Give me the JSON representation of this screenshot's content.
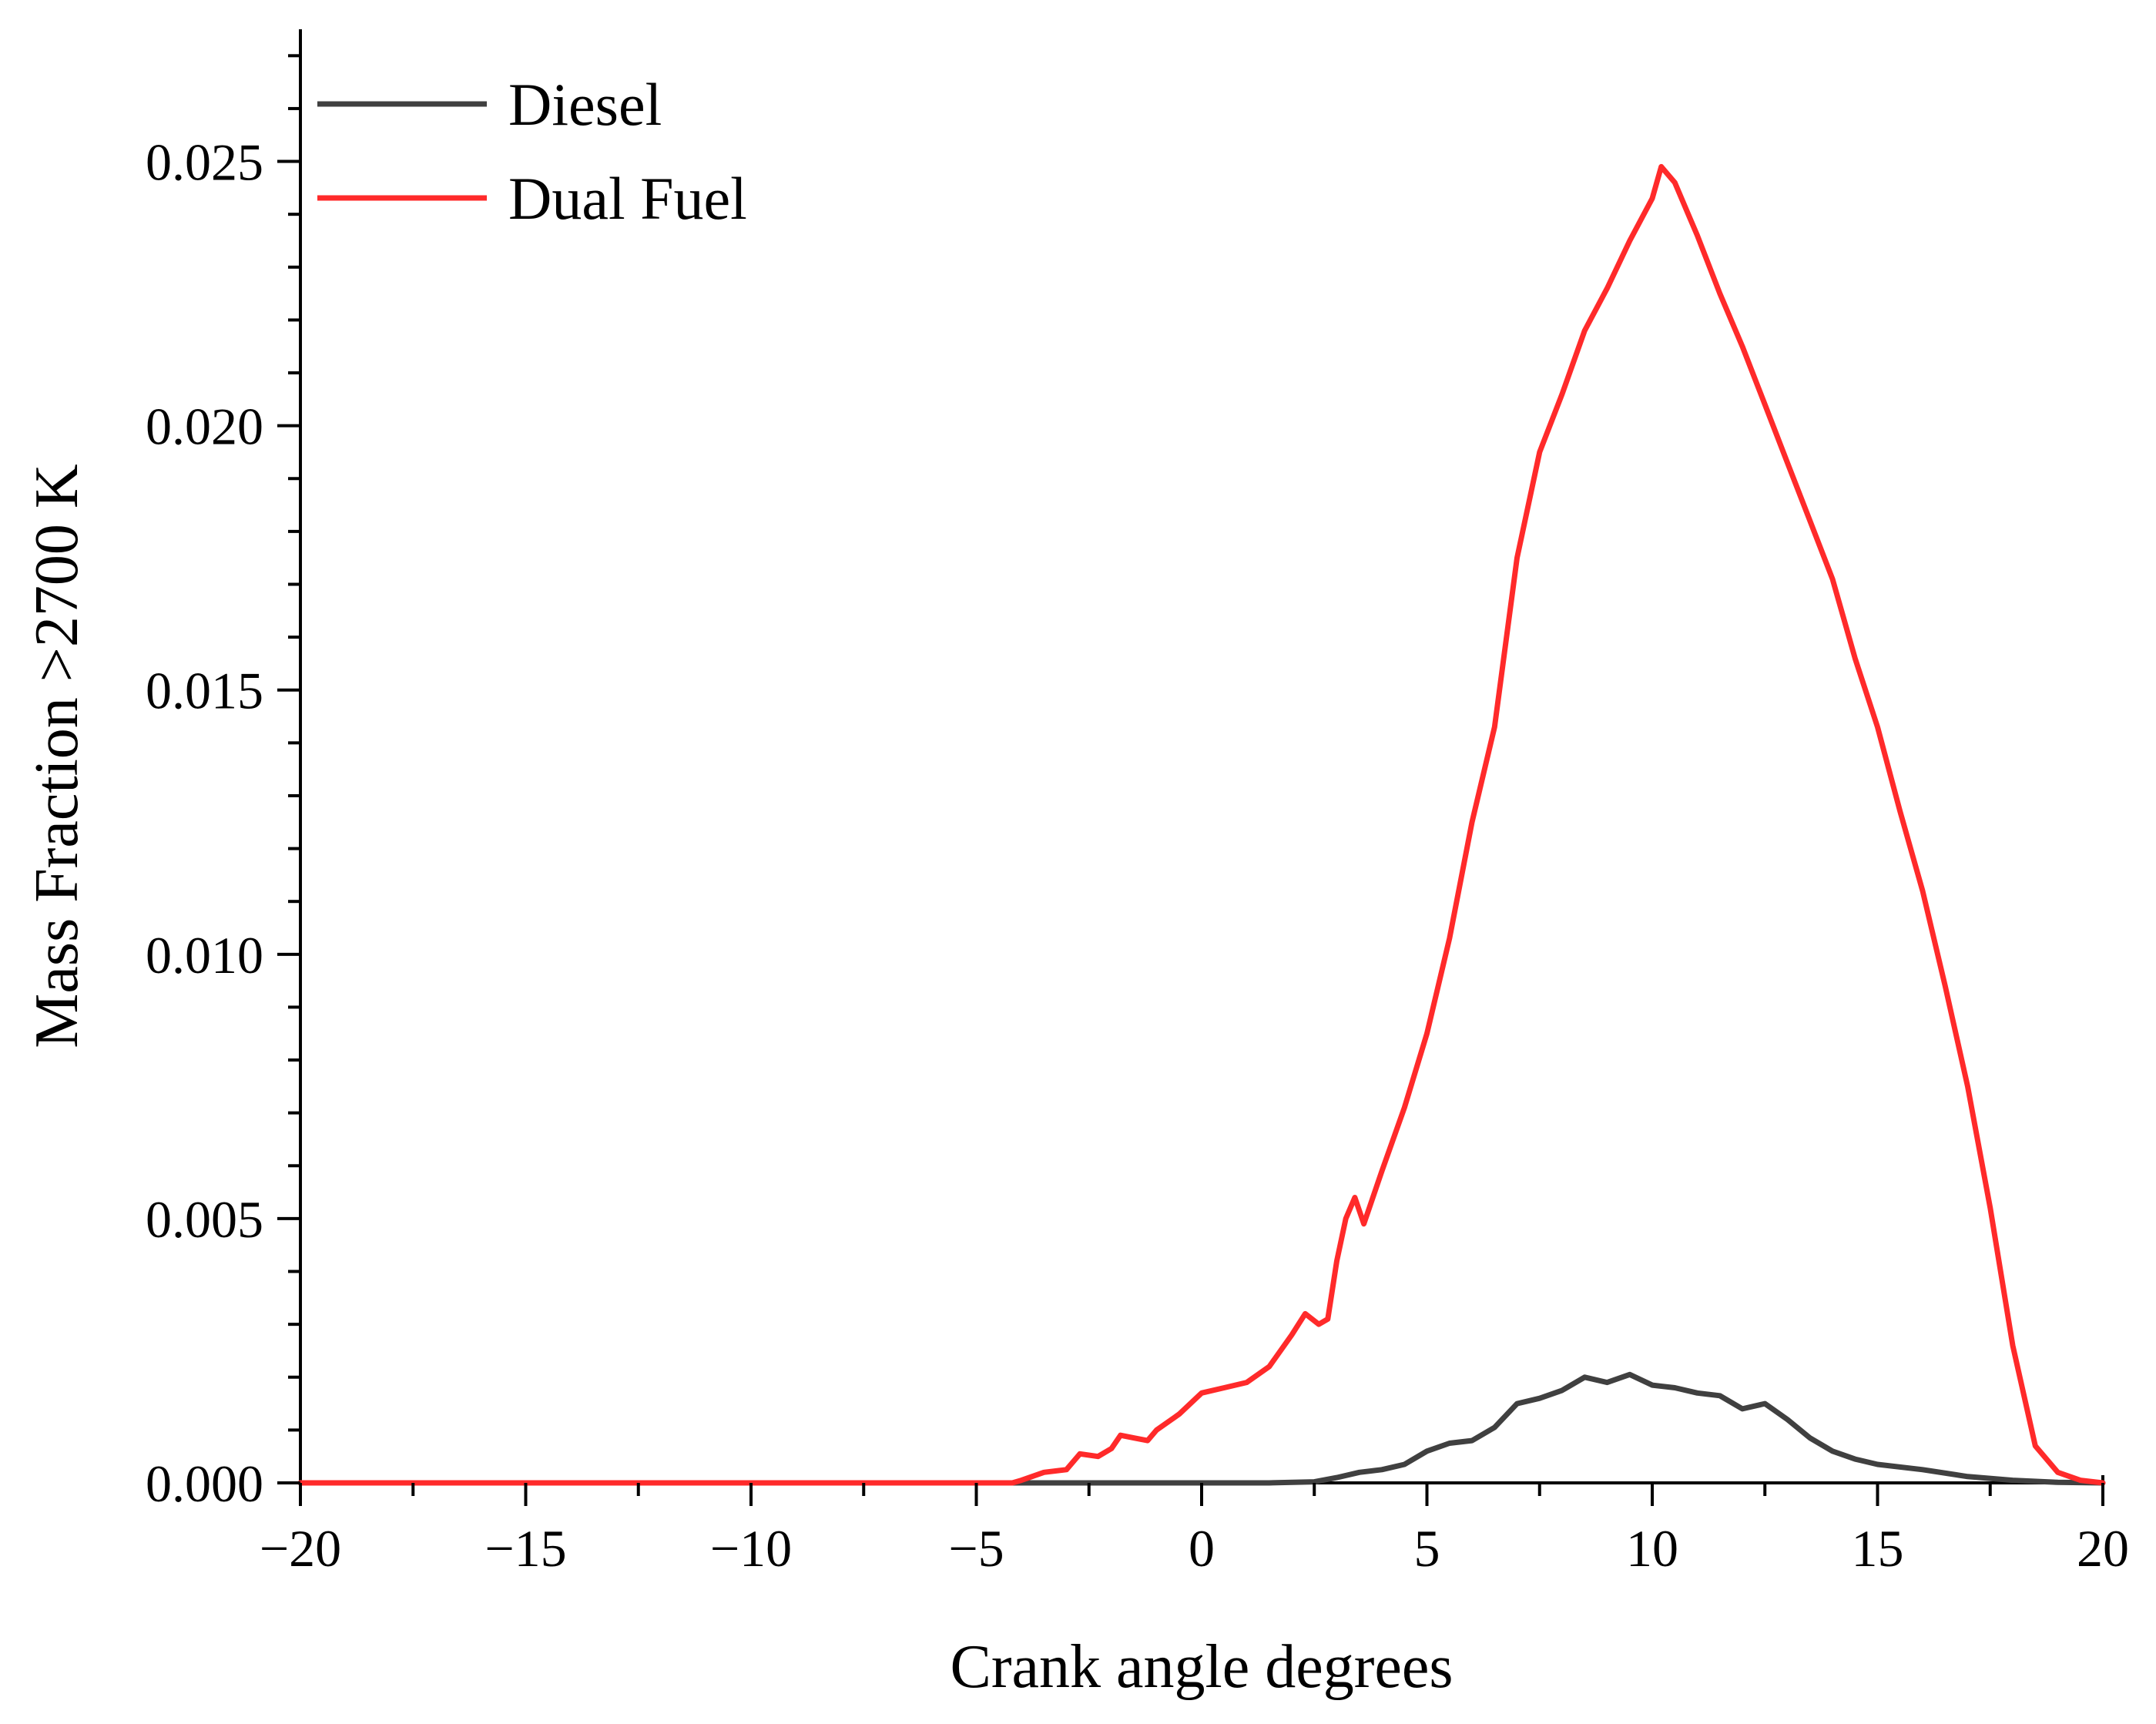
{
  "chart_data": {
    "type": "line",
    "title": "",
    "xlabel": "Crank angle degrees",
    "ylabel": "Mass Fraction >2700 K",
    "xlim": [
      -20,
      20
    ],
    "ylim": [
      0,
      0.0275
    ],
    "x_ticks": [
      -20,
      -15,
      -10,
      -5,
      0,
      5,
      10,
      15,
      20
    ],
    "x_tick_labels": [
      "−20",
      "−15",
      "−10",
      "−5",
      "0",
      "5",
      "10",
      "15",
      "20"
    ],
    "y_ticks": [
      0,
      0.005,
      0.01,
      0.015,
      0.02,
      0.025
    ],
    "y_tick_labels": [
      "0.000",
      "0.005",
      "0.010",
      "0.015",
      "0.020",
      "0.025"
    ],
    "grid": false,
    "legend_position": "top-left",
    "series": [
      {
        "name": "Diesel",
        "color": "#404040",
        "points": [
          [
            -20,
            0
          ],
          [
            1.5,
            0
          ],
          [
            2.5,
            2e-05
          ],
          [
            3.0,
            0.0001
          ],
          [
            3.5,
            0.0002
          ],
          [
            4.0,
            0.00025
          ],
          [
            4.5,
            0.00035
          ],
          [
            5.0,
            0.0006
          ],
          [
            5.5,
            0.00075
          ],
          [
            6.0,
            0.0008
          ],
          [
            6.5,
            0.00105
          ],
          [
            7.0,
            0.0015
          ],
          [
            7.5,
            0.0016
          ],
          [
            8.0,
            0.00175
          ],
          [
            8.5,
            0.002
          ],
          [
            9.0,
            0.0019
          ],
          [
            9.5,
            0.00205
          ],
          [
            10.0,
            0.00185
          ],
          [
            10.5,
            0.0018
          ],
          [
            11.0,
            0.0017
          ],
          [
            11.5,
            0.00165
          ],
          [
            12.0,
            0.0014
          ],
          [
            12.5,
            0.0015
          ],
          [
            13.0,
            0.0012
          ],
          [
            13.5,
            0.00085
          ],
          [
            14.0,
            0.0006
          ],
          [
            14.5,
            0.00045
          ],
          [
            15.0,
            0.00035
          ],
          [
            16.0,
            0.00025
          ],
          [
            17.0,
            0.00012
          ],
          [
            18.0,
            5e-05
          ],
          [
            19.0,
            1e-05
          ],
          [
            20,
            0
          ]
        ]
      },
      {
        "name": "Dual Fuel",
        "color": "#ff2a2a",
        "points": [
          [
            -20,
            0
          ],
          [
            -4.2,
            0
          ],
          [
            -4.0,
            5e-05
          ],
          [
            -3.5,
            0.0002
          ],
          [
            -3.0,
            0.00025
          ],
          [
            -2.7,
            0.00055
          ],
          [
            -2.3,
            0.0005
          ],
          [
            -2.0,
            0.00065
          ],
          [
            -1.8,
            0.0009
          ],
          [
            -1.5,
            0.00085
          ],
          [
            -1.2,
            0.0008
          ],
          [
            -1.0,
            0.001
          ],
          [
            -0.5,
            0.0013
          ],
          [
            0.0,
            0.0017
          ],
          [
            0.5,
            0.0018
          ],
          [
            1.0,
            0.0019
          ],
          [
            1.5,
            0.0022
          ],
          [
            2.0,
            0.0028
          ],
          [
            2.3,
            0.0032
          ],
          [
            2.6,
            0.003
          ],
          [
            2.8,
            0.0031
          ],
          [
            3.0,
            0.0042
          ],
          [
            3.2,
            0.005
          ],
          [
            3.4,
            0.0054
          ],
          [
            3.6,
            0.0049
          ],
          [
            4.0,
            0.0059
          ],
          [
            4.5,
            0.0071
          ],
          [
            5.0,
            0.0085
          ],
          [
            5.5,
            0.0103
          ],
          [
            6.0,
            0.0125
          ],
          [
            6.5,
            0.0143
          ],
          [
            7.0,
            0.0175
          ],
          [
            7.5,
            0.0195
          ],
          [
            8.0,
            0.0206
          ],
          [
            8.5,
            0.0218
          ],
          [
            9.0,
            0.0226
          ],
          [
            9.5,
            0.0235
          ],
          [
            10.0,
            0.0243
          ],
          [
            10.2,
            0.0249
          ],
          [
            10.5,
            0.0246
          ],
          [
            10.8,
            0.024
          ],
          [
            11.0,
            0.0236
          ],
          [
            11.5,
            0.0225
          ],
          [
            12.0,
            0.0215
          ],
          [
            12.5,
            0.0204
          ],
          [
            13.0,
            0.0193
          ],
          [
            13.5,
            0.0182
          ],
          [
            14.0,
            0.0171
          ],
          [
            14.5,
            0.0156
          ],
          [
            15.0,
            0.0143
          ],
          [
            15.5,
            0.0127
          ],
          [
            16.0,
            0.0112
          ],
          [
            16.5,
            0.0094
          ],
          [
            17.0,
            0.0075
          ],
          [
            17.5,
            0.0052
          ],
          [
            18.0,
            0.0026
          ],
          [
            18.5,
            0.0007
          ],
          [
            19.0,
            0.0002
          ],
          [
            19.5,
            5e-05
          ],
          [
            20,
            0
          ]
        ]
      }
    ]
  }
}
